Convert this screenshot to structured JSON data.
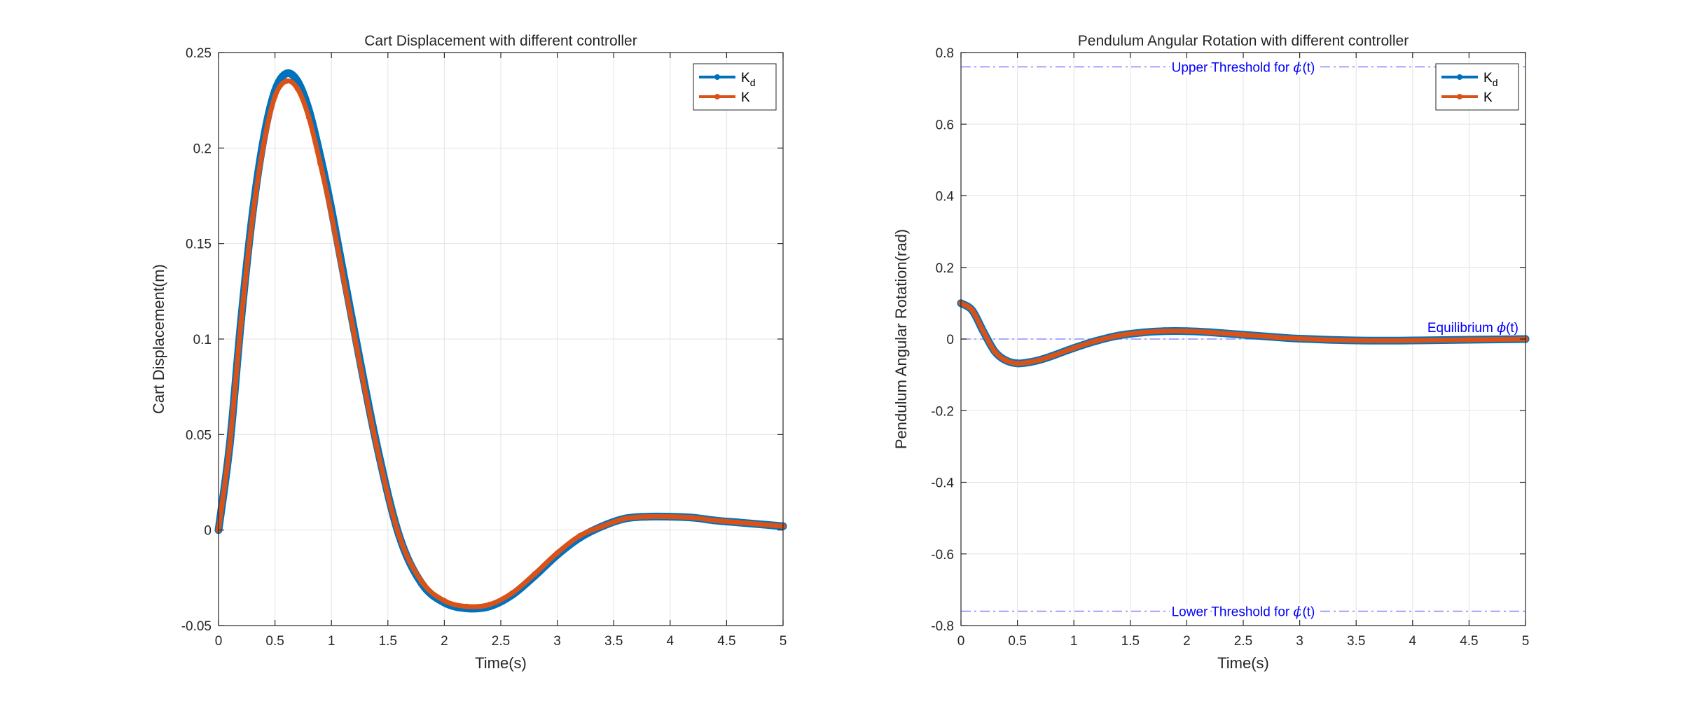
{
  "chart_data": [
    {
      "type": "line",
      "title": "Cart Displacement with different controller",
      "xlabel": "Time(s)",
      "ylabel": "Cart Displacement(m)",
      "xlim": [
        0,
        5
      ],
      "ylim": [
        -0.05,
        0.25
      ],
      "xticks": [
        0,
        0.5,
        1,
        1.5,
        2,
        2.5,
        3,
        3.5,
        4,
        4.5,
        5
      ],
      "xtick_labels": [
        "0",
        "0.5",
        "1",
        "1.5",
        "2",
        "2.5",
        "3",
        "3.5",
        "4",
        "4.5",
        "5"
      ],
      "yticks": [
        -0.05,
        0,
        0.05,
        0.1,
        0.15,
        0.2,
        0.25
      ],
      "ytick_labels": [
        "-0.05",
        "0",
        "0.05",
        "0.1",
        "0.15",
        "0.2",
        "0.25"
      ],
      "grid": true,
      "legend_position": "top-right",
      "series": [
        {
          "name": "K",
          "name_subscript": "d",
          "color": "#0072BD",
          "x": [
            0,
            0.1,
            0.2,
            0.3,
            0.4,
            0.5,
            0.6,
            0.7,
            0.8,
            0.9,
            1.0,
            1.2,
            1.4,
            1.6,
            1.8,
            2.0,
            2.2,
            2.4,
            2.6,
            2.8,
            3.0,
            3.2,
            3.4,
            3.6,
            3.8,
            4.0,
            4.2,
            4.4,
            4.6,
            4.8,
            5.0
          ],
          "y": [
            0,
            0.045,
            0.11,
            0.165,
            0.205,
            0.23,
            0.239,
            0.235,
            0.22,
            0.196,
            0.168,
            0.105,
            0.045,
            -0.003,
            -0.028,
            -0.038,
            -0.041,
            -0.04,
            -0.034,
            -0.024,
            -0.013,
            -0.004,
            0.002,
            0.006,
            0.007,
            0.007,
            0.0065,
            0.005,
            0.004,
            0.003,
            0.002
          ]
        },
        {
          "name": "K",
          "color": "#D95319",
          "x": [
            0,
            0.1,
            0.2,
            0.3,
            0.4,
            0.5,
            0.6,
            0.7,
            0.8,
            0.9,
            1.0,
            1.2,
            1.4,
            1.6,
            1.8,
            2.0,
            2.2,
            2.4,
            2.6,
            2.8,
            3.0,
            3.2,
            3.4,
            3.6,
            3.8,
            4.0,
            4.2,
            4.4,
            4.6,
            4.8,
            5.0
          ],
          "y": [
            0,
            0.045,
            0.109,
            0.163,
            0.202,
            0.227,
            0.235,
            0.231,
            0.216,
            0.192,
            0.165,
            0.103,
            0.044,
            -0.003,
            -0.027,
            -0.037,
            -0.04,
            -0.039,
            -0.033,
            -0.023,
            -0.012,
            -0.003,
            0.002,
            0.006,
            0.007,
            0.007,
            0.0065,
            0.005,
            0.004,
            0.003,
            0.002
          ]
        }
      ]
    },
    {
      "type": "line",
      "title": "Pendulum Angular Rotation with different controller",
      "xlabel": "Time(s)",
      "ylabel": "Pendulum Angular Rotation(rad)",
      "xlim": [
        0,
        5
      ],
      "ylim": [
        -0.8,
        0.8
      ],
      "xticks": [
        0,
        0.5,
        1,
        1.5,
        2,
        2.5,
        3,
        3.5,
        4,
        4.5,
        5
      ],
      "xtick_labels": [
        "0",
        "0.5",
        "1",
        "1.5",
        "2",
        "2.5",
        "3",
        "3.5",
        "4",
        "4.5",
        "5"
      ],
      "yticks": [
        -0.8,
        -0.6,
        -0.4,
        -0.2,
        0,
        0.2,
        0.4,
        0.6,
        0.8
      ],
      "ytick_labels": [
        "-0.8",
        "-0.6",
        "-0.4",
        "-0.2",
        "0",
        "0.2",
        "0.4",
        "0.6",
        "0.8"
      ],
      "grid": true,
      "legend_position": "top-right",
      "series": [
        {
          "name": "K",
          "name_subscript": "d",
          "color": "#0072BD",
          "x": [
            0,
            0.1,
            0.2,
            0.3,
            0.4,
            0.5,
            0.6,
            0.7,
            0.8,
            1.0,
            1.2,
            1.4,
            1.6,
            1.8,
            2.0,
            2.2,
            2.5,
            2.8,
            3.0,
            3.5,
            4.0,
            4.5,
            5.0
          ],
          "y": [
            0.1,
            0.08,
            0.02,
            -0.035,
            -0.06,
            -0.068,
            -0.065,
            -0.058,
            -0.048,
            -0.025,
            -0.005,
            0.01,
            0.018,
            0.022,
            0.022,
            0.019,
            0.012,
            0.005,
            0.001,
            -0.004,
            -0.004,
            -0.002,
            0.0
          ]
        },
        {
          "name": "K",
          "color": "#D95319",
          "x": [
            0,
            0.1,
            0.2,
            0.3,
            0.4,
            0.5,
            0.6,
            0.7,
            0.8,
            1.0,
            1.2,
            1.4,
            1.6,
            1.8,
            2.0,
            2.2,
            2.5,
            2.8,
            3.0,
            3.5,
            4.0,
            4.5,
            5.0
          ],
          "y": [
            0.1,
            0.08,
            0.02,
            -0.035,
            -0.06,
            -0.068,
            -0.065,
            -0.058,
            -0.048,
            -0.025,
            -0.005,
            0.01,
            0.018,
            0.022,
            0.022,
            0.019,
            0.012,
            0.005,
            0.001,
            -0.004,
            -0.004,
            -0.002,
            0.0
          ]
        }
      ],
      "reference_lines": [
        {
          "y": 0.76,
          "label": "Upper Threshold for ",
          "symbol": "ϕ",
          "suffix": "(t)",
          "label_position": "center",
          "color": "#0000ff"
        },
        {
          "y": 0,
          "label": "Equilibrium ",
          "symbol": "ϕ",
          "suffix": "(t)",
          "label_position": "right",
          "color": "#0000ff"
        },
        {
          "y": -0.76,
          "label": "Lower Threshold for ",
          "symbol": "ϕ",
          "suffix": "(t)",
          "label_position": "center",
          "color": "#0000ff"
        }
      ]
    }
  ]
}
